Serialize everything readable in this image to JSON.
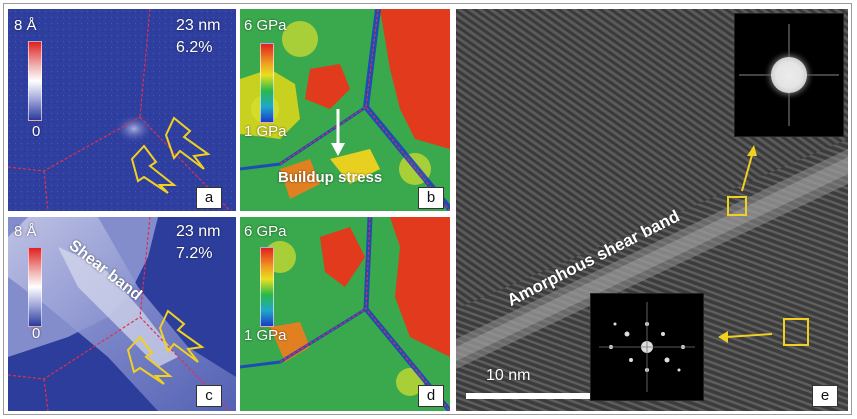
{
  "panels": {
    "a": {
      "letter": "a",
      "scale_max": "8 Å",
      "scale_min": "0",
      "size": "23 nm",
      "strain": "6.2%"
    },
    "b": {
      "letter": "b",
      "scale_max": "6 GPa",
      "scale_min": "1 GPa",
      "annotation": "Buildup stress"
    },
    "c": {
      "letter": "c",
      "scale_max": "8 Å",
      "scale_min": "0",
      "size": "23 nm",
      "strain": "7.2%",
      "annotation": "Shear band"
    },
    "d": {
      "letter": "d",
      "scale_max": "6 GPa",
      "scale_min": "1 GPa"
    },
    "e": {
      "letter": "e",
      "annotation": "Amorphous shear band",
      "scale_bar": "10 nm"
    }
  },
  "colors": {
    "displacement_low": "#2a3a9a",
    "displacement_high": "#e02020",
    "grain_boundary": "#e0304a",
    "arrow_yellow": "#f0d020",
    "stress_low": "#1a3cc8",
    "stress_mid": "#2ab84a",
    "stress_high": "#e02a1a"
  },
  "icons": {
    "shear_arrows": "double-arrow-icon",
    "stress_arrow": "down-arrow-icon",
    "pointer_arrow": "yellow-arrow-icon"
  }
}
